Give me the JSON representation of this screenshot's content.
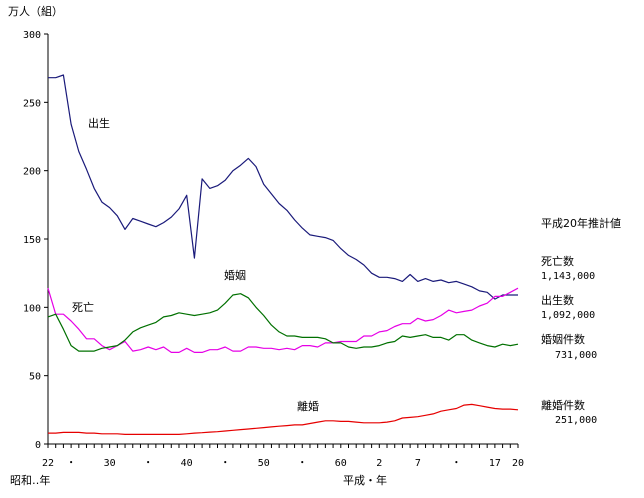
{
  "chart_data": {
    "type": "line",
    "ylabel": "万人（組）",
    "ylim": [
      0,
      300
    ],
    "yticks": [
      0,
      50,
      100,
      150,
      200,
      250,
      300
    ],
    "xlim": [
      22,
      20
    ],
    "era_left_label": "昭和‥年",
    "era_right_label": "平成・年",
    "xtick_labels": [
      {
        "year": 1947,
        "label": "22"
      },
      {
        "year": 1950,
        "label": "・"
      },
      {
        "year": 1955,
        "label": "30"
      },
      {
        "year": 1960,
        "label": "・"
      },
      {
        "year": 1965,
        "label": "40"
      },
      {
        "year": 1970,
        "label": "・"
      },
      {
        "year": 1975,
        "label": "50"
      },
      {
        "year": 1980,
        "label": "・"
      },
      {
        "year": 1985,
        "label": "60"
      },
      {
        "year": 1990,
        "label": "2"
      },
      {
        "year": 1995,
        "label": "7"
      },
      {
        "year": 2000,
        "label": "・"
      },
      {
        "year": 2005,
        "label": "17"
      },
      {
        "year": 2008,
        "label": "20"
      }
    ],
    "estimate_note": "平成20年推計値",
    "series": [
      {
        "name": "出生",
        "color": "#1a1a7a",
        "x": [
          1947,
          1948,
          1949,
          1950,
          1951,
          1952,
          1953,
          1954,
          1955,
          1956,
          1957,
          1958,
          1959,
          1960,
          1961,
          1962,
          1963,
          1964,
          1965,
          1966,
          1967,
          1968,
          1969,
          1970,
          1971,
          1972,
          1973,
          1974,
          1975,
          1976,
          1977,
          1978,
          1979,
          1980,
          1981,
          1982,
          1983,
          1984,
          1985,
          1986,
          1987,
          1988,
          1989,
          1990,
          1991,
          1992,
          1993,
          1994,
          1995,
          1996,
          1997,
          1998,
          1999,
          2000,
          2001,
          2002,
          2003,
          2004,
          2005,
          2006,
          2007,
          2008
        ],
        "values": [
          268,
          268,
          270,
          234,
          214,
          201,
          187,
          177,
          173,
          167,
          157,
          165,
          163,
          161,
          159,
          162,
          166,
          172,
          182,
          136,
          194,
          187,
          189,
          193,
          200,
          204,
          209,
          203,
          190,
          183,
          176,
          171,
          164,
          158,
          153,
          152,
          151,
          149,
          143,
          138,
          135,
          131,
          125,
          122,
          122,
          121,
          119,
          124,
          119,
          121,
          119,
          120,
          118,
          119,
          117,
          115,
          112,
          111,
          106,
          109,
          109,
          109
        ]
      },
      {
        "name": "死亡",
        "color": "#e600e6",
        "x": [
          1947,
          1948,
          1949,
          1950,
          1951,
          1952,
          1953,
          1954,
          1955,
          1956,
          1957,
          1958,
          1959,
          1960,
          1961,
          1962,
          1963,
          1964,
          1965,
          1966,
          1967,
          1968,
          1969,
          1970,
          1971,
          1972,
          1973,
          1974,
          1975,
          1976,
          1977,
          1978,
          1979,
          1980,
          1981,
          1982,
          1983,
          1984,
          1985,
          1986,
          1987,
          1988,
          1989,
          1990,
          1991,
          1992,
          1993,
          1994,
          1995,
          1996,
          1997,
          1998,
          1999,
          2000,
          2001,
          2002,
          2003,
          2004,
          2005,
          2006,
          2007,
          2008
        ],
        "values": [
          114,
          95,
          95,
          90,
          84,
          77,
          77,
          72,
          69,
          72,
          75,
          68,
          69,
          71,
          69,
          71,
          67,
          67,
          70,
          67,
          67,
          69,
          69,
          71,
          68,
          68,
          71,
          71,
          70,
          70,
          69,
          70,
          69,
          72,
          72,
          71,
          74,
          74,
          75,
          75,
          75,
          79,
          79,
          82,
          83,
          86,
          88,
          88,
          92,
          90,
          91,
          94,
          98,
          96,
          97,
          98,
          101,
          103,
          108,
          108,
          111,
          114
        ]
      },
      {
        "name": "婚姻",
        "color": "#007000",
        "x": [
          1947,
          1948,
          1949,
          1950,
          1951,
          1952,
          1953,
          1954,
          1955,
          1956,
          1957,
          1958,
          1959,
          1960,
          1961,
          1962,
          1963,
          1964,
          1965,
          1966,
          1967,
          1968,
          1969,
          1970,
          1971,
          1972,
          1973,
          1974,
          1975,
          1976,
          1977,
          1978,
          1979,
          1980,
          1981,
          1982,
          1983,
          1984,
          1985,
          1986,
          1987,
          1988,
          1989,
          1990,
          1991,
          1992,
          1993,
          1994,
          1995,
          1996,
          1997,
          1998,
          1999,
          2000,
          2001,
          2002,
          2003,
          2004,
          2005,
          2006,
          2007,
          2008
        ],
        "values": [
          93,
          95,
          84,
          72,
          68,
          68,
          68,
          70,
          71,
          72,
          76,
          82,
          85,
          87,
          89,
          93,
          94,
          96,
          95,
          94,
          95,
          96,
          98,
          103,
          109,
          110,
          107,
          100,
          94,
          87,
          82,
          79,
          79,
          78,
          78,
          78,
          77,
          74,
          74,
          71,
          70,
          71,
          71,
          72,
          74,
          75,
          79,
          78,
          79,
          80,
          78,
          78,
          76,
          80,
          80,
          76,
          74,
          72,
          71,
          73,
          72,
          73
        ]
      },
      {
        "name": "離婚",
        "color": "#e60000",
        "x": [
          1947,
          1948,
          1949,
          1950,
          1951,
          1952,
          1953,
          1954,
          1955,
          1956,
          1957,
          1958,
          1959,
          1960,
          1961,
          1962,
          1963,
          1964,
          1965,
          1966,
          1967,
          1968,
          1969,
          1970,
          1971,
          1972,
          1973,
          1974,
          1975,
          1976,
          1977,
          1978,
          1979,
          1980,
          1981,
          1982,
          1983,
          1984,
          1985,
          1986,
          1987,
          1988,
          1989,
          1990,
          1991,
          1992,
          1993,
          1994,
          1995,
          1996,
          1997,
          1998,
          1999,
          2000,
          2001,
          2002,
          2003,
          2004,
          2005,
          2006,
          2007,
          2008
        ],
        "values": [
          8,
          8,
          8.5,
          8.5,
          8.5,
          8,
          8,
          7.5,
          7.5,
          7.5,
          7,
          7,
          7,
          7,
          7,
          7,
          7,
          7,
          7.5,
          8,
          8.3,
          8.7,
          9,
          9.5,
          10,
          10.5,
          11,
          11.5,
          12,
          12.5,
          13,
          13.5,
          14,
          14,
          15,
          16,
          17,
          17,
          16.5,
          16.5,
          16,
          15.5,
          15.5,
          15.5,
          16,
          17,
          19,
          19.5,
          20,
          21,
          22,
          24,
          25,
          26,
          28.5,
          29,
          28,
          27,
          26,
          25.5,
          25.5,
          25
        ]
      }
    ],
    "labels": {
      "birth": "出生",
      "death": "死亡",
      "marriage": "婚姻",
      "divorce": "離婚"
    },
    "annotations": [
      {
        "label": "死亡数",
        "value": "1,143,000"
      },
      {
        "label": "出生数",
        "value": "1,092,000"
      },
      {
        "label": "婚姻件数",
        "value": "731,000"
      },
      {
        "label": "離婚件数",
        "value": "251,000"
      }
    ]
  }
}
